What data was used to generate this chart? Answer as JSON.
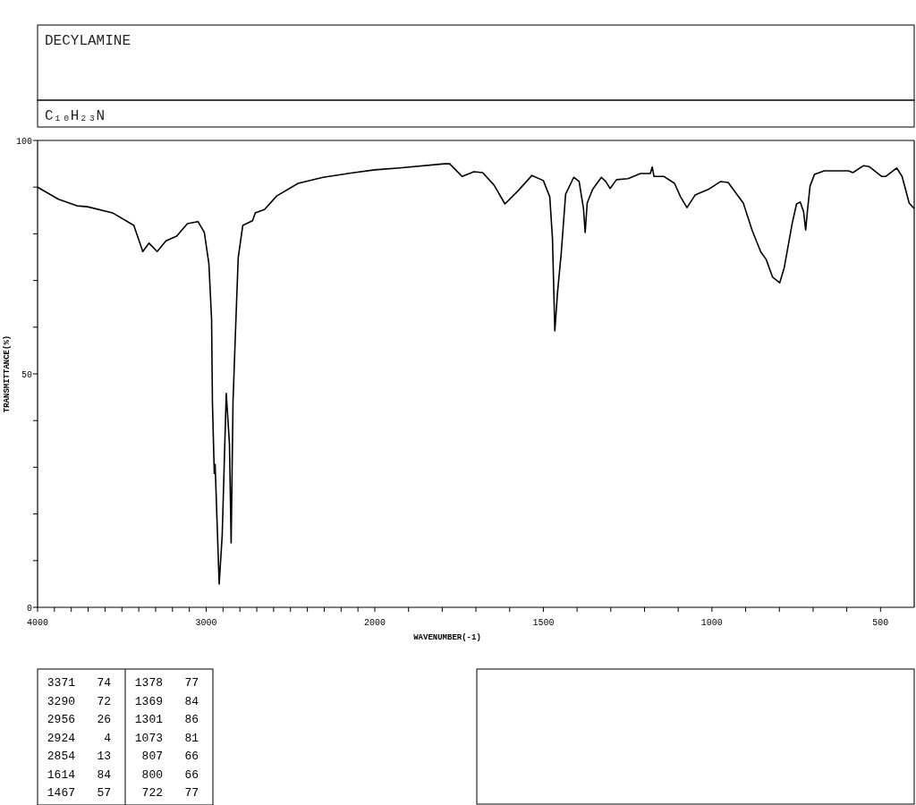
{
  "chart_data": [
    {
      "type": "line",
      "title": "DECYLAMINE",
      "subtitle": "C₁₀H₂₃N",
      "ylabel": "TRANSMITTANCE(%)",
      "x": [
        4000,
        3876,
        3767,
        3704,
        3556,
        3429,
        3376,
        3339,
        3291,
        3238,
        3175,
        3111,
        3048,
        3011,
        2984,
        2968,
        2963,
        2952,
        2947,
        2923,
        2905,
        2881,
        2862,
        2852,
        2841,
        2825,
        2810,
        2783,
        2725,
        2709,
        2654,
        2582,
        2455,
        2307,
        2124,
        2000
      ],
      "series": [
        {
          "color": "#000000",
          "values": [
            90,
            87.4,
            86,
            85.8,
            84.5,
            81.8,
            76.2,
            78,
            76.2,
            78.5,
            79.5,
            82.2,
            82.6,
            80.3,
            73.6,
            61.7,
            43.9,
            28.7,
            30.6,
            5,
            15.5,
            45.8,
            35,
            13.8,
            43.9,
            60.3,
            74.9,
            81.8,
            82.8,
            84.5,
            85.2,
            88.1,
            90.8,
            92.1,
            93.1,
            93.7
          ]
        }
      ],
      "xlim": [
        4000,
        2000
      ],
      "xticks": [
        4000,
        {
          "value": 3900,
          "label": null
        },
        {
          "value": 3800,
          "label": null
        },
        {
          "value": 3700,
          "label": null
        },
        {
          "value": 3600,
          "label": null
        },
        {
          "value": 3500,
          "label": null
        },
        {
          "value": 3400,
          "label": null
        },
        {
          "value": 3300,
          "label": null
        },
        {
          "value": 3200,
          "label": null
        },
        {
          "value": 3100,
          "label": null
        },
        3000,
        {
          "value": 2900,
          "label": null
        },
        {
          "value": 2800,
          "label": null
        },
        {
          "value": 2700,
          "label": null
        },
        {
          "value": 2600,
          "label": null
        },
        {
          "value": 2500,
          "label": null
        },
        {
          "value": 2400,
          "label": null
        },
        {
          "value": 2300,
          "label": null
        },
        {
          "value": 2200,
          "label": null
        },
        {
          "value": 2100,
          "label": null
        },
        2000
      ],
      "ylim": [
        0,
        100
      ],
      "yticks": [
        0,
        {
          "value": 10,
          "label": null
        },
        {
          "value": 20,
          "label": null
        },
        {
          "value": 30,
          "label": null
        },
        {
          "value": 40,
          "label": null
        },
        50,
        {
          "value": 60,
          "label": null
        },
        {
          "value": 70,
          "label": null
        },
        {
          "value": 80,
          "label": null
        },
        {
          "value": 90,
          "label": null
        },
        100
      ],
      "grid": false,
      "annotations": [
        "3371 74",
        "3290 72",
        "2956 26",
        "2924 4",
        "2854 13",
        "1614 84",
        "1467 57",
        "1378 77",
        "1369 84",
        "1301 86",
        "1073 81",
        "807 66",
        "800 66",
        "722 77"
      ]
    },
    {
      "type": "line",
      "xlabel": "WAVENUMBER(-1)",
      "x": [
        2000,
        1926,
        1794,
        1778,
        1741,
        1706,
        1680,
        1646,
        1614,
        1574,
        1534,
        1500,
        1481,
        1473,
        1466,
        1458,
        1447,
        1434,
        1410,
        1394,
        1381,
        1376,
        1370,
        1354,
        1328,
        1315,
        1302,
        1283,
        1249,
        1212,
        1183,
        1177,
        1172,
        1143,
        1111,
        1093,
        1074,
        1050,
        1011,
        974,
        952,
        907,
        881,
        855,
        839,
        820,
        799,
        786,
        762,
        749,
        738,
        728,
        722,
        717,
        709,
        696,
        667,
        595,
        582,
        550,
        534,
        497,
        484,
        452,
        436,
        415,
        400
      ],
      "series": [
        {
          "color": "#000000",
          "values": [
            93.7,
            94.1,
            95,
            95,
            92.3,
            93.3,
            93.1,
            90.4,
            86.4,
            89.3,
            92.5,
            91.4,
            87.9,
            79,
            59.2,
            67.4,
            75.9,
            88.5,
            92.1,
            91.2,
            85.4,
            80.3,
            86.6,
            89.5,
            92.1,
            91.2,
            89.7,
            91.6,
            91.8,
            92.9,
            92.9,
            94.3,
            92.3,
            92.3,
            90.8,
            87.9,
            85.6,
            88.3,
            89.5,
            91.2,
            91,
            86.6,
            80.8,
            76.1,
            74.5,
            70.7,
            69.5,
            72.6,
            82.2,
            86.4,
            86.8,
            84.7,
            80.8,
            84.7,
            90.2,
            92.7,
            93.5,
            93.5,
            93.1,
            94.6,
            94.4,
            92.3,
            92.3,
            94.1,
            92.3,
            86.6,
            85.4
          ]
        }
      ],
      "xlim": [
        2000,
        400
      ],
      "xticks": [
        {
          "value": 1900,
          "label": null
        },
        {
          "value": 1800,
          "label": null
        },
        {
          "value": 1700,
          "label": null
        },
        {
          "value": 1600,
          "label": null
        },
        1500,
        {
          "value": 1400,
          "label": null
        },
        {
          "value": 1300,
          "label": null
        },
        {
          "value": 1200,
          "label": null
        },
        {
          "value": 1100,
          "label": null
        },
        1000,
        {
          "value": 900,
          "label": null
        },
        {
          "value": 800,
          "label": null
        },
        {
          "value": 700,
          "label": null
        },
        {
          "value": 600,
          "label": null
        },
        500
      ],
      "ylim": [
        0,
        100
      ],
      "tick_labels": "x",
      "grid": false
    }
  ]
}
